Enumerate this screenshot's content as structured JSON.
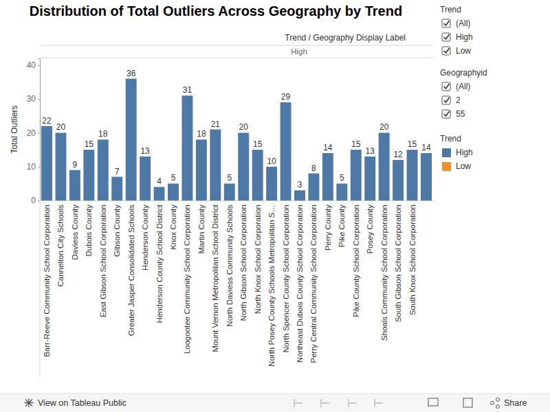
{
  "chart_data": {
    "type": "bar",
    "title": "Distribution of Total Outliers Across Geography by Trend",
    "x_label": "Trend / Geography Display Label",
    "facet": "High",
    "y_label": "Total Outliers",
    "categories": [
      "Barr-Reeve Community School Corporation",
      "Cannelton City Schools",
      "Daviess County",
      "Dubois County",
      "East Gibson School Corporation",
      "Gibson County",
      "Greater Jasper Consolidated Schools",
      "Henderson County",
      "Henderson County School District",
      "Knox County",
      "Loogootee Community School Corporation",
      "Martin County",
      "Mount Vernon Metropolitan School District",
      "North Daviess Community Schools",
      "North Gibson School Corporation",
      "North Knox School Corporation",
      "North Posey County Schools Metropolitan S…",
      "North Spencer County School Corporation",
      "Northeast Dubois County School Corporation",
      "Perry Central Community School Corporation",
      "Perry County",
      "Pike County",
      "Pike County School Corporation",
      "Posey County",
      "Shoals Community School Corporation",
      "South Gibson School Corporation",
      "South Knox School Corporation",
      null
    ],
    "series": [
      {
        "name": "High",
        "color": "#4e79a7",
        "values": [
          22,
          20,
          9,
          15,
          18,
          7,
          36,
          13,
          4,
          5,
          31,
          18,
          21,
          5,
          20,
          15,
          10,
          29,
          3,
          8,
          14,
          5,
          15,
          13,
          20,
          12,
          15,
          14
        ]
      },
      {
        "name": "Low",
        "color": "#f28e2b",
        "values": [
          null,
          null,
          null,
          null,
          null,
          null,
          null,
          null,
          null,
          null,
          null,
          null,
          null,
          null,
          null,
          null,
          null,
          null,
          null,
          null,
          null,
          null,
          null,
          null,
          null,
          null,
          null,
          null
        ]
      }
    ],
    "legend_title": "Trend",
    "legend": "right",
    "ylim": [
      0,
      42
    ],
    "yticks": [
      0,
      10,
      20,
      30,
      40
    ],
    "grid": false,
    "data_labels": true
  },
  "filters": [
    {
      "title": "Trend",
      "options": [
        "(All)",
        "High",
        "Low"
      ]
    },
    {
      "title": "Geographyid",
      "options": [
        "(All)",
        "2",
        "55"
      ]
    }
  ],
  "footer": {
    "link": "View on Tableau Public",
    "share": "Share"
  }
}
